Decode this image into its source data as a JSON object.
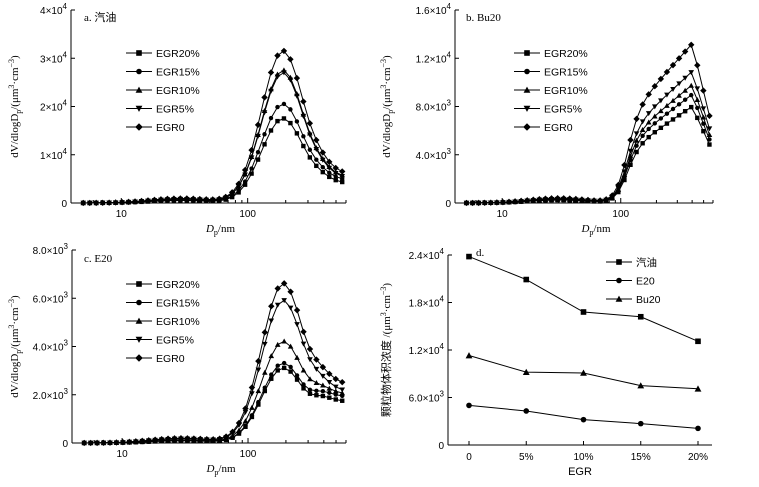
{
  "chart_data": [
    {
      "id": "a",
      "type": "line",
      "panel_label": "a. 汽油",
      "xscale": "log",
      "xlim": [
        4,
        600
      ],
      "ylim": [
        0,
        40000
      ],
      "xticks": [
        10,
        100
      ],
      "xtick_labels": [
        "10",
        "100"
      ],
      "yticks": [
        0,
        10000,
        20000,
        30000,
        40000
      ],
      "ytick_labels": [
        {
          "base": "0",
          "exp": ""
        },
        {
          "base": "1×10",
          "exp": "4"
        },
        {
          "base": "2×10",
          "exp": "4"
        },
        {
          "base": "3×10",
          "exp": "4"
        },
        {
          "base": "4×10",
          "exp": "4"
        }
      ],
      "xlabel": {
        "main": "D",
        "sub": "p",
        "tail": "/nm"
      },
      "ylabel": {
        "a": "dV/dlogD",
        "sub": "p",
        "b": "/(μm",
        "sup1": "3",
        "c": "·cm",
        "sup2": "−3",
        "d": ")"
      },
      "legend_position": "top-left",
      "series": [
        {
          "name": "EGR20%",
          "marker": "square",
          "peak": 17500,
          "tail": 4000
        },
        {
          "name": "EGR15%",
          "marker": "circle",
          "peak": 20500,
          "tail": 4600
        },
        {
          "name": "EGR10%",
          "marker": "triangle-up",
          "peak": 27500,
          "tail": 5200
        },
        {
          "name": "EGR5%",
          "marker": "triangle-down",
          "peak": 27000,
          "tail": 5000
        },
        {
          "name": "EGR0",
          "marker": "diamond",
          "peak": 31500,
          "tail": 5900
        }
      ]
    },
    {
      "id": "b",
      "type": "line",
      "panel_label": "b. Bu20",
      "xscale": "log",
      "xlim": [
        4,
        600
      ],
      "ylim": [
        0,
        16000
      ],
      "xticks": [
        10,
        100
      ],
      "xtick_labels": [
        "10",
        "100"
      ],
      "yticks": [
        0,
        4000,
        8000,
        12000,
        16000
      ],
      "ytick_labels": [
        {
          "base": "0",
          "exp": ""
        },
        {
          "base": "4.0×10",
          "exp": "3"
        },
        {
          "base": "8.0×10",
          "exp": "3"
        },
        {
          "base": "1.2×10",
          "exp": "4"
        },
        {
          "base": "1.6×10",
          "exp": "4"
        }
      ],
      "xlabel": {
        "main": "D",
        "sub": "p",
        "tail": "/nm"
      },
      "ylabel": {
        "a": "dV/dlogD",
        "sub": "p",
        "b": "/(μm",
        "sup1": "3",
        "c": "·cm",
        "sup2": "−3",
        "d": ")"
      },
      "legend_position": "top-left",
      "series": [
        {
          "name": "EGR20%",
          "marker": "square",
          "peak": 8000,
          "tail": 4200
        },
        {
          "name": "EGR15%",
          "marker": "circle",
          "peak": 9000,
          "tail": 4500
        },
        {
          "name": "EGR10%",
          "marker": "triangle-up",
          "peak": 9800,
          "tail": 4800
        },
        {
          "name": "EGR5%",
          "marker": "triangle-down",
          "peak": 10900,
          "tail": 5200
        },
        {
          "name": "EGR0",
          "marker": "diamond",
          "peak": 13200,
          "tail": 6000
        }
      ]
    },
    {
      "id": "c",
      "type": "line",
      "panel_label": "c. E20",
      "xscale": "log",
      "xlim": [
        4,
        600
      ],
      "ylim": [
        0,
        8000
      ],
      "xticks": [
        10,
        100
      ],
      "xtick_labels": [
        "10",
        "100"
      ],
      "yticks": [
        0,
        2000,
        4000,
        6000,
        8000
      ],
      "ytick_labels": [
        {
          "base": "0",
          "exp": ""
        },
        {
          "base": "2.0×10",
          "exp": "3"
        },
        {
          "base": "4.0×10",
          "exp": "3"
        },
        {
          "base": "6.0×10",
          "exp": "3"
        },
        {
          "base": "8.0×10",
          "exp": "3"
        }
      ],
      "xlabel": {
        "main": "D",
        "sub": "p",
        "tail": "/nm"
      },
      "ylabel": {
        "a": "dV/dlogD",
        "sub": "p",
        "b": "/(μm",
        "sup1": "3",
        "c": "·cm",
        "sup2": "−3",
        "d": ")"
      },
      "legend_position": "top-left",
      "series": [
        {
          "name": "EGR20%",
          "marker": "square",
          "peak": 3100,
          "tail": 1700
        },
        {
          "name": "EGR15%",
          "marker": "circle",
          "peak": 3300,
          "tail": 1900
        },
        {
          "name": "EGR10%",
          "marker": "triangle-up",
          "peak": 4200,
          "tail": 2000
        },
        {
          "name": "EGR5%",
          "marker": "triangle-down",
          "peak": 5900,
          "tail": 2100
        },
        {
          "name": "EGR0",
          "marker": "diamond",
          "peak": 6600,
          "tail": 2400
        }
      ]
    },
    {
      "id": "d",
      "type": "line",
      "panel_label": "d.",
      "categories": [
        "0",
        "5%",
        "10%",
        "15%",
        "20%"
      ],
      "xlabel": {
        "main": "EGR"
      },
      "ylabel": {
        "a": "颗粒物体积浓度 /(μm",
        "sup1": "3",
        "c": "·cm",
        "sup2": "−3",
        "d": ")"
      },
      "ylim": [
        0,
        24000
      ],
      "yticks": [
        0,
        6000,
        12000,
        18000,
        24000
      ],
      "ytick_labels": [
        {
          "base": "0",
          "exp": ""
        },
        {
          "base": "6.0×10",
          "exp": "3"
        },
        {
          "base": "1.2×10",
          "exp": "4"
        },
        {
          "base": "1.8×10",
          "exp": "4"
        },
        {
          "base": "2.4×10",
          "exp": "4"
        }
      ],
      "legend_position": "top-right",
      "series": [
        {
          "name": "汽油",
          "marker": "square",
          "values": [
            23800,
            20900,
            16800,
            16200,
            13100
          ]
        },
        {
          "name": "E20",
          "marker": "circle",
          "values": [
            5000,
            4300,
            3200,
            2700,
            2100
          ]
        },
        {
          "name": "Bu20",
          "marker": "triangle-up",
          "values": [
            11300,
            9200,
            9100,
            7500,
            7100
          ]
        }
      ]
    }
  ]
}
